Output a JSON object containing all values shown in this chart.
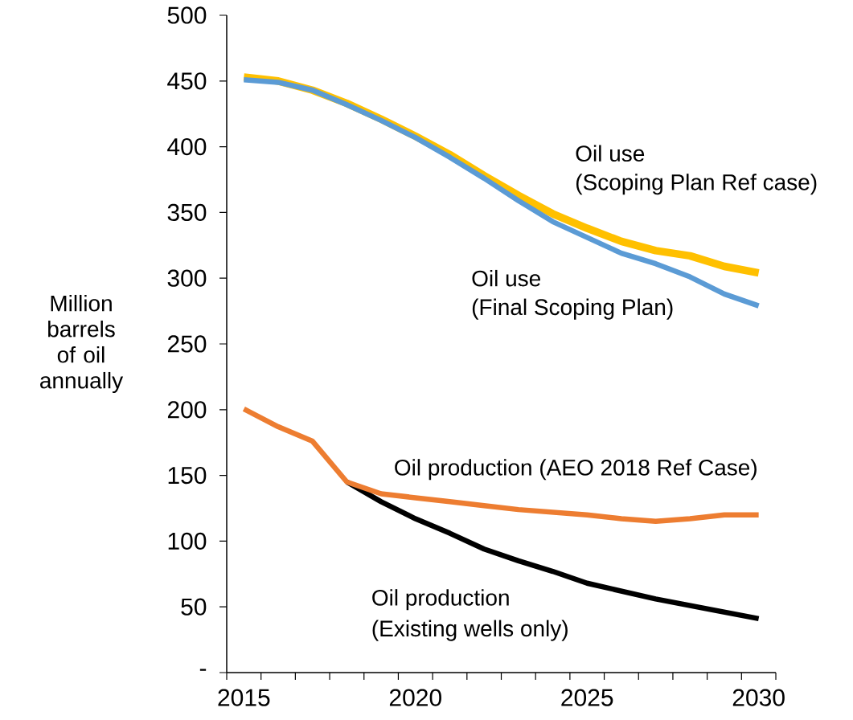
{
  "chart_data": {
    "type": "line",
    "ylabel": "Million barrels of oil annually",
    "x": [
      2015,
      2016,
      2017,
      2018,
      2019,
      2020,
      2021,
      2022,
      2023,
      2024,
      2025,
      2026,
      2027,
      2028,
      2029,
      2030
    ],
    "xlim": [
      2014.5,
      2030.5
    ],
    "xticks": [
      {
        "value": 2014.5,
        "label": null
      },
      2015,
      {
        "value": 2015.5,
        "label": null
      },
      {
        "value": 2016.5,
        "label": null
      },
      {
        "value": 2017.5,
        "label": null
      },
      {
        "value": 2018.5,
        "label": null
      },
      {
        "value": 2019.5,
        "label": null
      },
      2020,
      {
        "value": 2020.5,
        "label": null
      },
      {
        "value": 2021.5,
        "label": null
      },
      {
        "value": 2022.5,
        "label": null
      },
      {
        "value": 2023.5,
        "label": null
      },
      {
        "value": 2024.5,
        "label": null
      },
      2025,
      {
        "value": 2025.5,
        "label": null
      },
      {
        "value": 2026.5,
        "label": null
      },
      {
        "value": 2027.5,
        "label": null
      },
      {
        "value": 2028.5,
        "label": null
      },
      {
        "value": 2029.5,
        "label": null
      },
      2030,
      {
        "value": 2030.5,
        "label": null
      }
    ],
    "ylim": [
      0,
      500
    ],
    "yticks": [
      {
        "value": 0,
        "label": "-"
      },
      50,
      100,
      150,
      200,
      250,
      300,
      350,
      400,
      450,
      500
    ],
    "series": [
      {
        "color": "#ffc000",
        "values": [
          453,
          450,
          443,
          433,
          421,
          408,
          394,
          378,
          363,
          349,
          338,
          328,
          321,
          317,
          309,
          304
        ]
      },
      {
        "color": "#5b9bd5",
        "values": [
          451,
          449,
          443,
          432,
          420,
          407,
          392,
          376,
          359,
          343,
          331,
          319,
          311,
          301,
          288,
          279
        ]
      },
      {
        "color": "#000000",
        "values": [
          null,
          null,
          null,
          145,
          130,
          117,
          106,
          94,
          85,
          77,
          68,
          62,
          56,
          51,
          46,
          41
        ]
      },
      {
        "color": "#ed7d31",
        "values": [
          200.5,
          187,
          176,
          145,
          136,
          133,
          130,
          127,
          124,
          122,
          120,
          117,
          115,
          117,
          120,
          120
        ]
      }
    ],
    "annotations": [
      "Oil use",
      "(Scoping Plan Ref case)",
      "Oil use",
      "(Final Scoping Plan)",
      "Oil production (AEO 2018 Ref Case)",
      "Oil production",
      "(Existing wells only)"
    ]
  }
}
